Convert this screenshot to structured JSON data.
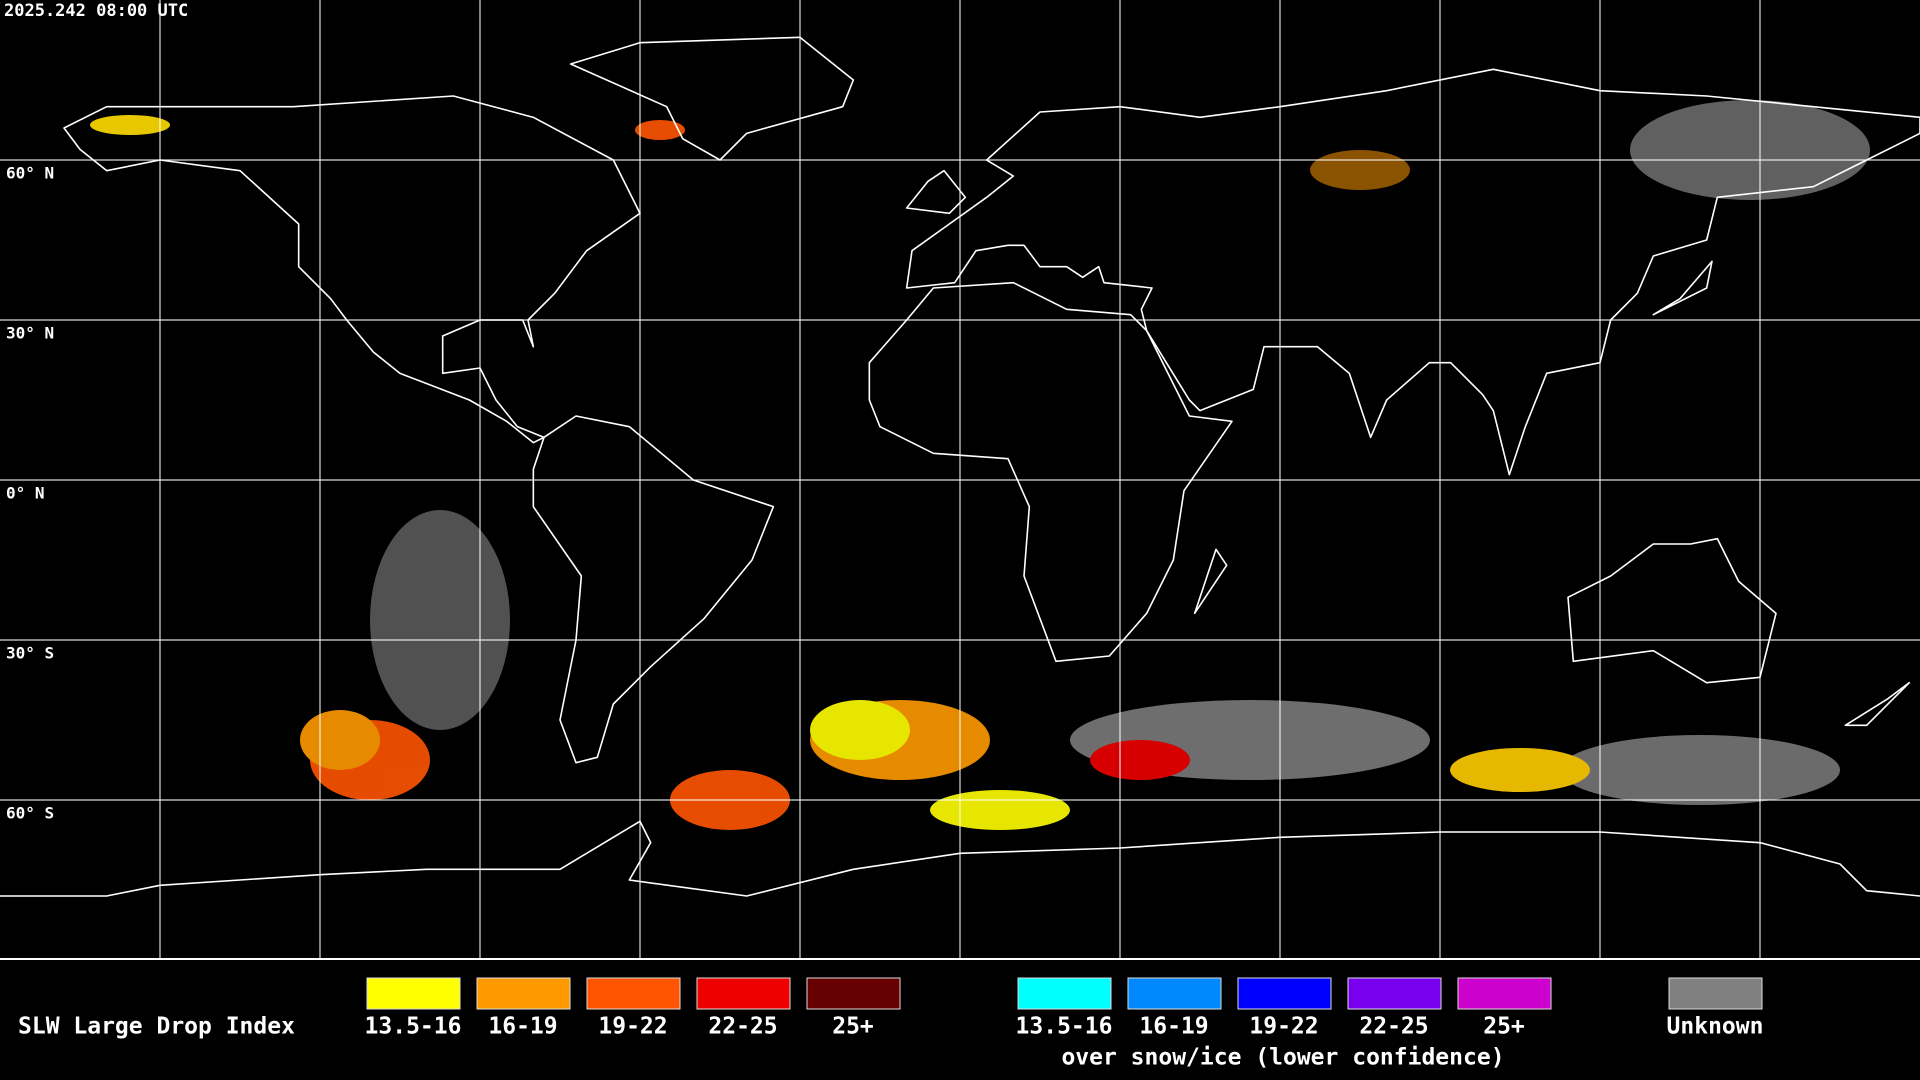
{
  "header": {
    "timestamp": "2025.242 08:00 UTC"
  },
  "map": {
    "lat_labels": [
      "60° N",
      "30° N",
      "0° N",
      "30° S",
      "60° S"
    ]
  },
  "legend": {
    "title": "SLW Large Drop Index",
    "normal": [
      {
        "label": "13.5-16",
        "color": "#ffff00"
      },
      {
        "label": "16-19",
        "color": "#ff9900"
      },
      {
        "label": "19-22",
        "color": "#ff5500"
      },
      {
        "label": "22-25",
        "color": "#ee0000"
      },
      {
        "label": "25+",
        "color": "#660000"
      }
    ],
    "snow": [
      {
        "label": "13.5-16",
        "color": "#00ffff"
      },
      {
        "label": "16-19",
        "color": "#0088ff"
      },
      {
        "label": "19-22",
        "color": "#0000ff"
      },
      {
        "label": "22-25",
        "color": "#7700ee"
      },
      {
        "label": "25+",
        "color": "#cc00cc"
      }
    ],
    "snow_caption": "over snow/ice (lower confidence)",
    "unknown": {
      "label": "Unknown",
      "color": "#808080"
    }
  }
}
